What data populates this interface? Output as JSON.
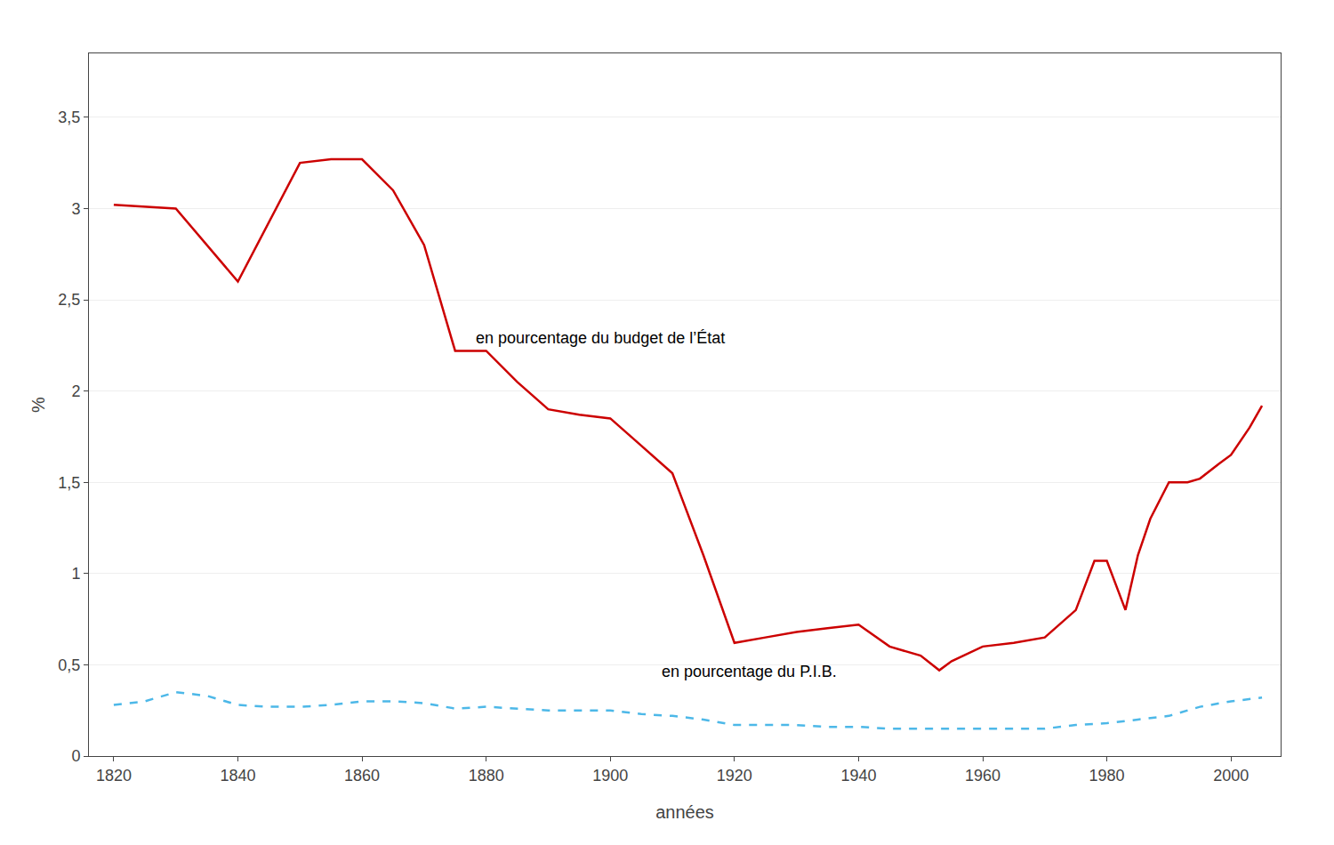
{
  "chart_data": {
    "type": "line",
    "x_label": "années",
    "y_label": "%",
    "series": [
      {
        "x": [
          1820,
          1830,
          1840,
          1850,
          1855,
          1860,
          1865,
          1870,
          1875,
          1880,
          1885,
          1890,
          1895,
          1900,
          1905,
          1910,
          1915,
          1920,
          1925,
          1930,
          1935,
          1940,
          1945,
          1950,
          1953,
          1955,
          1960,
          1965,
          1970,
          1975,
          1978,
          1980,
          1983,
          1985,
          1987,
          1990,
          1993,
          1995,
          1998,
          2000,
          2003,
          2005
        ],
        "values": [
          3.02,
          3.0,
          2.6,
          3.25,
          3.27,
          3.27,
          3.1,
          2.8,
          2.22,
          2.22,
          2.05,
          1.9,
          1.87,
          1.85,
          1.7,
          1.55,
          1.1,
          0.62,
          0.65,
          0.68,
          0.7,
          0.72,
          0.6,
          0.55,
          0.47,
          0.52,
          0.6,
          0.62,
          0.65,
          0.8,
          1.07,
          1.07,
          0.8,
          1.1,
          1.3,
          1.5,
          1.5,
          1.52,
          1.6,
          1.65,
          1.8,
          1.92
        ],
        "color": "#cc0000",
        "line_style": "solid"
      },
      {
        "x": [
          1820,
          1825,
          1830,
          1835,
          1840,
          1845,
          1850,
          1855,
          1860,
          1865,
          1870,
          1875,
          1880,
          1885,
          1890,
          1895,
          1900,
          1905,
          1910,
          1915,
          1920,
          1925,
          1930,
          1935,
          1940,
          1945,
          1950,
          1955,
          1960,
          1965,
          1970,
          1975,
          1980,
          1985,
          1990,
          1995,
          2000,
          2005
        ],
        "values": [
          0.28,
          0.3,
          0.35,
          0.33,
          0.28,
          0.27,
          0.27,
          0.28,
          0.3,
          0.3,
          0.29,
          0.26,
          0.27,
          0.26,
          0.25,
          0.25,
          0.25,
          0.23,
          0.22,
          0.2,
          0.17,
          0.17,
          0.17,
          0.16,
          0.16,
          0.15,
          0.15,
          0.15,
          0.15,
          0.15,
          0.15,
          0.17,
          0.18,
          0.2,
          0.22,
          0.27,
          0.3,
          0.32
        ],
        "color": "#4db8e8",
        "line_style": "dashed"
      }
    ],
    "xlim": [
      1816,
      2008
    ],
    "xticks": [
      1820,
      1840,
      1860,
      1880,
      1900,
      1920,
      1940,
      1960,
      1980,
      2000
    ],
    "ylim": [
      0,
      3.85
    ],
    "yticks": [
      0,
      {
        "value": 0.5,
        "label": "0,5"
      },
      1,
      {
        "value": 1.5,
        "label": "1,5"
      },
      2,
      {
        "value": 2.5,
        "label": "2,5"
      },
      3,
      {
        "value": 3.5,
        "label": "3,5"
      }
    ],
    "grid": "y",
    "annotations": [
      {
        "text": "en pourcentage du budget de l’État",
        "x": 1878,
        "y": 2.23
      },
      {
        "text": "en pourcentage du P.I.B.",
        "x": 1908,
        "y": 0.52
      }
    ]
  }
}
